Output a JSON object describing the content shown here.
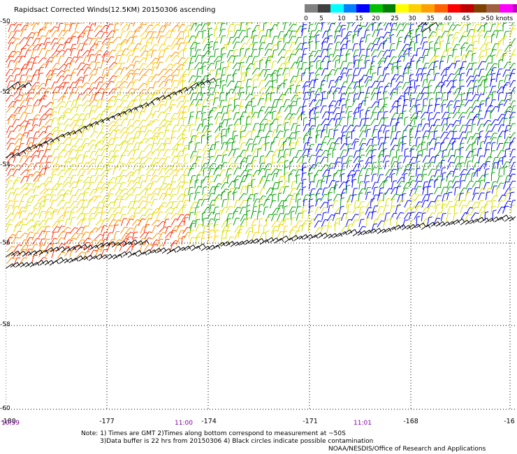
{
  "header": {
    "title": "Rapidsact Corrected Winds(12.5KM) 20150306 ascending"
  },
  "legend": {
    "labels": [
      "0",
      "5",
      "10",
      "15",
      "20",
      "25",
      "30",
      "35",
      "40",
      "45",
      ">50 knots"
    ],
    "colors": [
      "#808080",
      "#404040",
      "#00ffff",
      "#0080ff",
      "#0000ff",
      "#00c000",
      "#008000",
      "#ffff00",
      "#ffd000",
      "#ffa000",
      "#ff6000",
      "#ff0000",
      "#c00000",
      "#804000",
      "#a06040",
      "#ff00ff",
      "#c000c0",
      "#400080"
    ]
  },
  "axes": {
    "lon_ticks": [
      "-180",
      "-177",
      "-174",
      "-171",
      "-168",
      "-16"
    ],
    "lat_ticks": [
      "-50",
      "-52",
      "-54",
      "-56",
      "-58",
      "-60"
    ],
    "time_labels": [
      "10:59",
      "11:00",
      "11:01"
    ]
  },
  "notes": {
    "line1": "Note: 1) Times are GMT 2)Times along bottom correspond to measurement at ~50S",
    "line2": "3)Data buffer is 22 hrs from 20150306 4) Black circles indicate possible contamination",
    "line3": "NOAA/NESDIS/Office of Research and Applications"
  },
  "map": {
    "grid": "dotted",
    "speed_colors": [
      "#0000ff",
      "#00a000",
      "#d8e000",
      "#ffcc00",
      "#ff8c00",
      "#ff2a00",
      "#000000"
    ]
  }
}
